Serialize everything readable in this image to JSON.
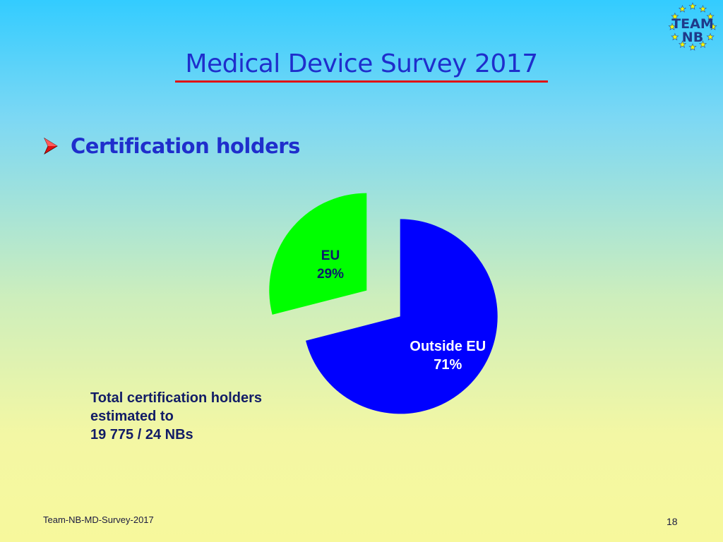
{
  "header": {
    "logo": {
      "line1": "TEAM",
      "line2": "NB",
      "icon": "team-nb-logo"
    },
    "title": "Medical Device Survey 2017"
  },
  "section": {
    "bullet_icon": "arrow-bullet-icon",
    "heading": "Certification holders"
  },
  "chart_data": {
    "type": "pie",
    "title": "",
    "slices": [
      {
        "label": "EU",
        "value_label": "29%",
        "value": 29,
        "color": "#00ff00",
        "exploded": true
      },
      {
        "label": "Outside EU",
        "value_label": "71%",
        "value": 71,
        "color": "#0000ff",
        "exploded": true
      }
    ]
  },
  "note": {
    "lines": [
      "Total certification holders",
      "estimated to",
      "19 775 / 24 NBs"
    ]
  },
  "footer": {
    "left": "Team-NB-MD-Survey-2017",
    "page_number": "18"
  },
  "colors": {
    "title": "#1f2ecc",
    "underline": "#e01010",
    "arrow": "#e01010",
    "note_text": "#121c66"
  }
}
